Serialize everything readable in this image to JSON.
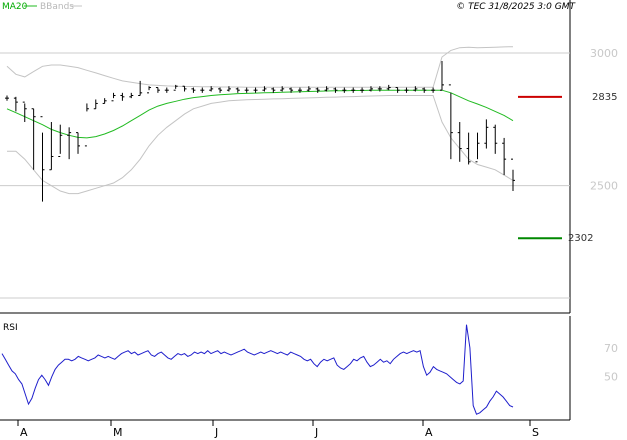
{
  "header": {
    "ma_label": "MA20",
    "bb_label": "BBands",
    "copyright": "© TEC 31/8/2025 3:0 GMT"
  },
  "colors": {
    "ma": "#22bb22",
    "bbands": "#c4c4c4",
    "rsi": "#1f1fcc",
    "candles": "#000000",
    "resistance": "#cc0000",
    "support": "#008800",
    "grid": "#cccccc",
    "frame": "#000000"
  },
  "chart_data": [
    {
      "type": "candlestick",
      "title": "",
      "y_ticks": [
        {
          "value": 3000,
          "label": "3000"
        },
        {
          "value": 2500,
          "label": "2500"
        }
      ],
      "ylim": [
        2020,
        3200
      ],
      "x_labels": [
        "A",
        "M",
        "J",
        "J",
        "A",
        "S"
      ],
      "legend": [
        "MA20",
        "BBands"
      ],
      "levels": [
        {
          "name": "resistance",
          "value": 2835,
          "label": "2835"
        },
        {
          "name": "support",
          "value": 2302,
          "label": "2302"
        }
      ],
      "close": [
        2830,
        2815,
        2790,
        2760,
        2560,
        2610,
        2690,
        2700,
        2650,
        2790,
        2810,
        2820,
        2840,
        2835,
        2840,
        2850,
        2870,
        2860,
        2860,
        2875,
        2865,
        2860,
        2860,
        2865,
        2860,
        2865,
        2860,
        2860,
        2860,
        2865,
        2860,
        2865,
        2860,
        2860,
        2865,
        2860,
        2865,
        2860,
        2860,
        2860,
        2860,
        2865,
        2865,
        2870,
        2860,
        2860,
        2865,
        2860,
        2860,
        2880,
        2700,
        2640,
        2590,
        2660,
        2720,
        2660,
        2600,
        2520
      ],
      "high": [
        2840,
        2835,
        2810,
        2790,
        2700,
        2740,
        2730,
        2720,
        2700,
        2810,
        2825,
        2830,
        2850,
        2850,
        2850,
        2895,
        2875,
        2870,
        2870,
        2880,
        2875,
        2870,
        2870,
        2875,
        2870,
        2875,
        2870,
        2870,
        2870,
        2875,
        2870,
        2875,
        2870,
        2870,
        2875,
        2870,
        2875,
        2870,
        2870,
        2870,
        2870,
        2875,
        2875,
        2880,
        2870,
        2870,
        2875,
        2870,
        2870,
        2970,
        2850,
        2740,
        2700,
        2700,
        2750,
        2730,
        2680,
        2560
      ],
      "low": [
        2820,
        2780,
        2740,
        2560,
        2440,
        2560,
        2620,
        2600,
        2620,
        2780,
        2790,
        2810,
        2830,
        2820,
        2830,
        2840,
        2860,
        2850,
        2850,
        2865,
        2855,
        2850,
        2850,
        2855,
        2850,
        2855,
        2850,
        2850,
        2850,
        2855,
        2850,
        2855,
        2850,
        2850,
        2855,
        2850,
        2855,
        2850,
        2850,
        2850,
        2850,
        2855,
        2855,
        2860,
        2850,
        2850,
        2855,
        2850,
        2850,
        2860,
        2600,
        2590,
        2580,
        2600,
        2640,
        2620,
        2540,
        2480
      ],
      "ma20": [
        2790,
        2775,
        2760,
        2745,
        2730,
        2712,
        2700,
        2690,
        2682,
        2680,
        2685,
        2695,
        2708,
        2725,
        2745,
        2765,
        2785,
        2800,
        2810,
        2818,
        2826,
        2832,
        2836,
        2840,
        2843,
        2845,
        2847,
        2848,
        2849,
        2850,
        2851,
        2852,
        2853,
        2854,
        2855,
        2856,
        2857,
        2858,
        2858,
        2859,
        2859,
        2860,
        2860,
        2860,
        2860,
        2860,
        2860,
        2860,
        2860,
        2860,
        2850,
        2835,
        2820,
        2808,
        2795,
        2780,
        2765,
        2745
      ],
      "bb_upper": [
        2950,
        2920,
        2910,
        2930,
        2950,
        2955,
        2955,
        2950,
        2945,
        2935,
        2925,
        2915,
        2905,
        2895,
        2890,
        2885,
        2880,
        2878,
        2876,
        2875,
        2874,
        2874,
        2873,
        2873,
        2872,
        2872,
        2872,
        2871,
        2871,
        2871,
        2871,
        2871,
        2871,
        2871,
        2871,
        2871,
        2871,
        2871,
        2871,
        2871,
        2871,
        2871,
        2871,
        2871,
        2871,
        2871,
        2871,
        2871,
        2871,
        2985,
        3010,
        3020,
        3022,
        3020,
        3021,
        3022,
        3023,
        3024
      ],
      "bb_lower": [
        2630,
        2630,
        2600,
        2560,
        2520,
        2500,
        2480,
        2470,
        2470,
        2480,
        2490,
        2500,
        2510,
        2530,
        2560,
        2600,
        2650,
        2690,
        2720,
        2745,
        2770,
        2790,
        2800,
        2810,
        2815,
        2820,
        2822,
        2824,
        2825,
        2826,
        2827,
        2828,
        2829,
        2830,
        2831,
        2832,
        2833,
        2834,
        2835,
        2836,
        2837,
        2838,
        2839,
        2840,
        2840,
        2840,
        2840,
        2840,
        2840,
        2740,
        2680,
        2640,
        2600,
        2580,
        2570,
        2560,
        2540,
        2520
      ]
    },
    {
      "type": "line",
      "title": "RSI",
      "y_ticks": [
        {
          "value": 70,
          "label": "70"
        },
        {
          "value": 50,
          "label": "50"
        }
      ],
      "ylim": [
        20,
        92
      ],
      "series": [
        {
          "name": "RSI",
          "values": [
            66,
            62,
            58,
            54,
            52,
            48,
            45,
            38,
            31,
            35,
            42,
            48,
            51,
            48,
            44,
            50,
            55,
            58,
            60,
            62,
            62,
            61,
            62,
            64,
            63,
            62,
            61,
            62,
            63,
            65,
            64,
            63,
            64,
            63,
            62,
            64,
            66,
            67,
            68,
            66,
            67,
            65,
            66,
            67,
            68,
            65,
            64,
            66,
            67,
            65,
            63,
            62,
            64,
            66,
            65,
            66,
            64,
            65,
            67,
            66,
            67,
            66,
            68,
            66,
            67,
            68,
            66,
            67,
            66,
            65,
            66,
            67,
            68,
            69,
            67,
            66,
            65,
            66,
            67,
            66,
            67,
            68,
            67,
            66,
            67,
            66,
            65,
            67,
            66,
            65,
            64,
            62,
            61,
            62,
            59,
            57,
            60,
            62,
            61,
            62,
            63,
            58,
            56,
            55,
            57,
            59,
            62,
            61,
            63,
            64,
            60,
            57,
            58,
            60,
            62,
            60,
            61,
            59,
            62,
            64,
            66,
            67,
            66,
            67,
            68,
            67,
            68,
            57,
            51,
            53,
            57,
            55,
            54,
            53,
            52,
            50,
            48,
            46,
            45,
            47,
            86,
            70,
            30,
            24,
            25,
            27,
            29,
            33,
            36,
            40,
            38,
            36,
            33,
            30,
            29
          ]
        }
      ]
    }
  ]
}
